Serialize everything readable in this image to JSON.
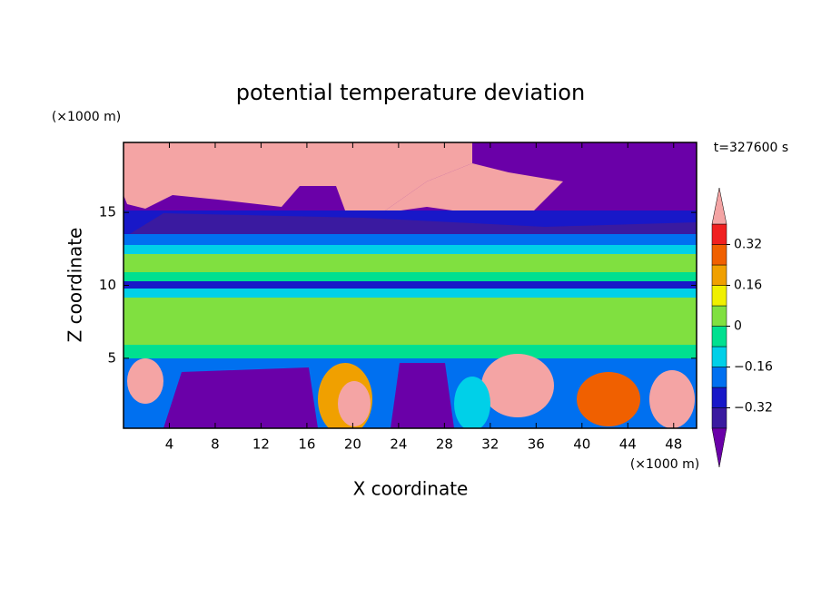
{
  "chart_data": {
    "type": "contourf",
    "title": "potential temperature deviation",
    "x_label": "X coordinate",
    "y_label": "Z coordinate",
    "x_unit": "(×1000 m)",
    "y_unit": "(×1000 m)",
    "time_label": "t=327600 s",
    "xlim": [
      0,
      50
    ],
    "ylim": [
      0.2,
      19.8
    ],
    "xticks": [
      4,
      8,
      12,
      16,
      20,
      24,
      28,
      32,
      36,
      40,
      44,
      48
    ],
    "yticks": [
      5,
      10,
      15
    ],
    "levels": [
      -0.4,
      -0.32,
      -0.24,
      -0.16,
      -0.08,
      0,
      0.08,
      0.16,
      0.24,
      0.32,
      0.4
    ],
    "colors": [
      "#6a00a8",
      "#3a1aa0",
      "#1818c8",
      "#0070f0",
      "#00d0e8",
      "#00e090",
      "#80e040",
      "#f0f000",
      "#f0a000",
      "#f06000",
      "#f02020",
      "#f4a4a4"
    ],
    "colorbar_ticks": [
      {
        "value": -0.32,
        "label": "−0.32"
      },
      {
        "value": -0.16,
        "label": "−0.16"
      },
      0,
      0.16,
      0.32
    ]
  }
}
